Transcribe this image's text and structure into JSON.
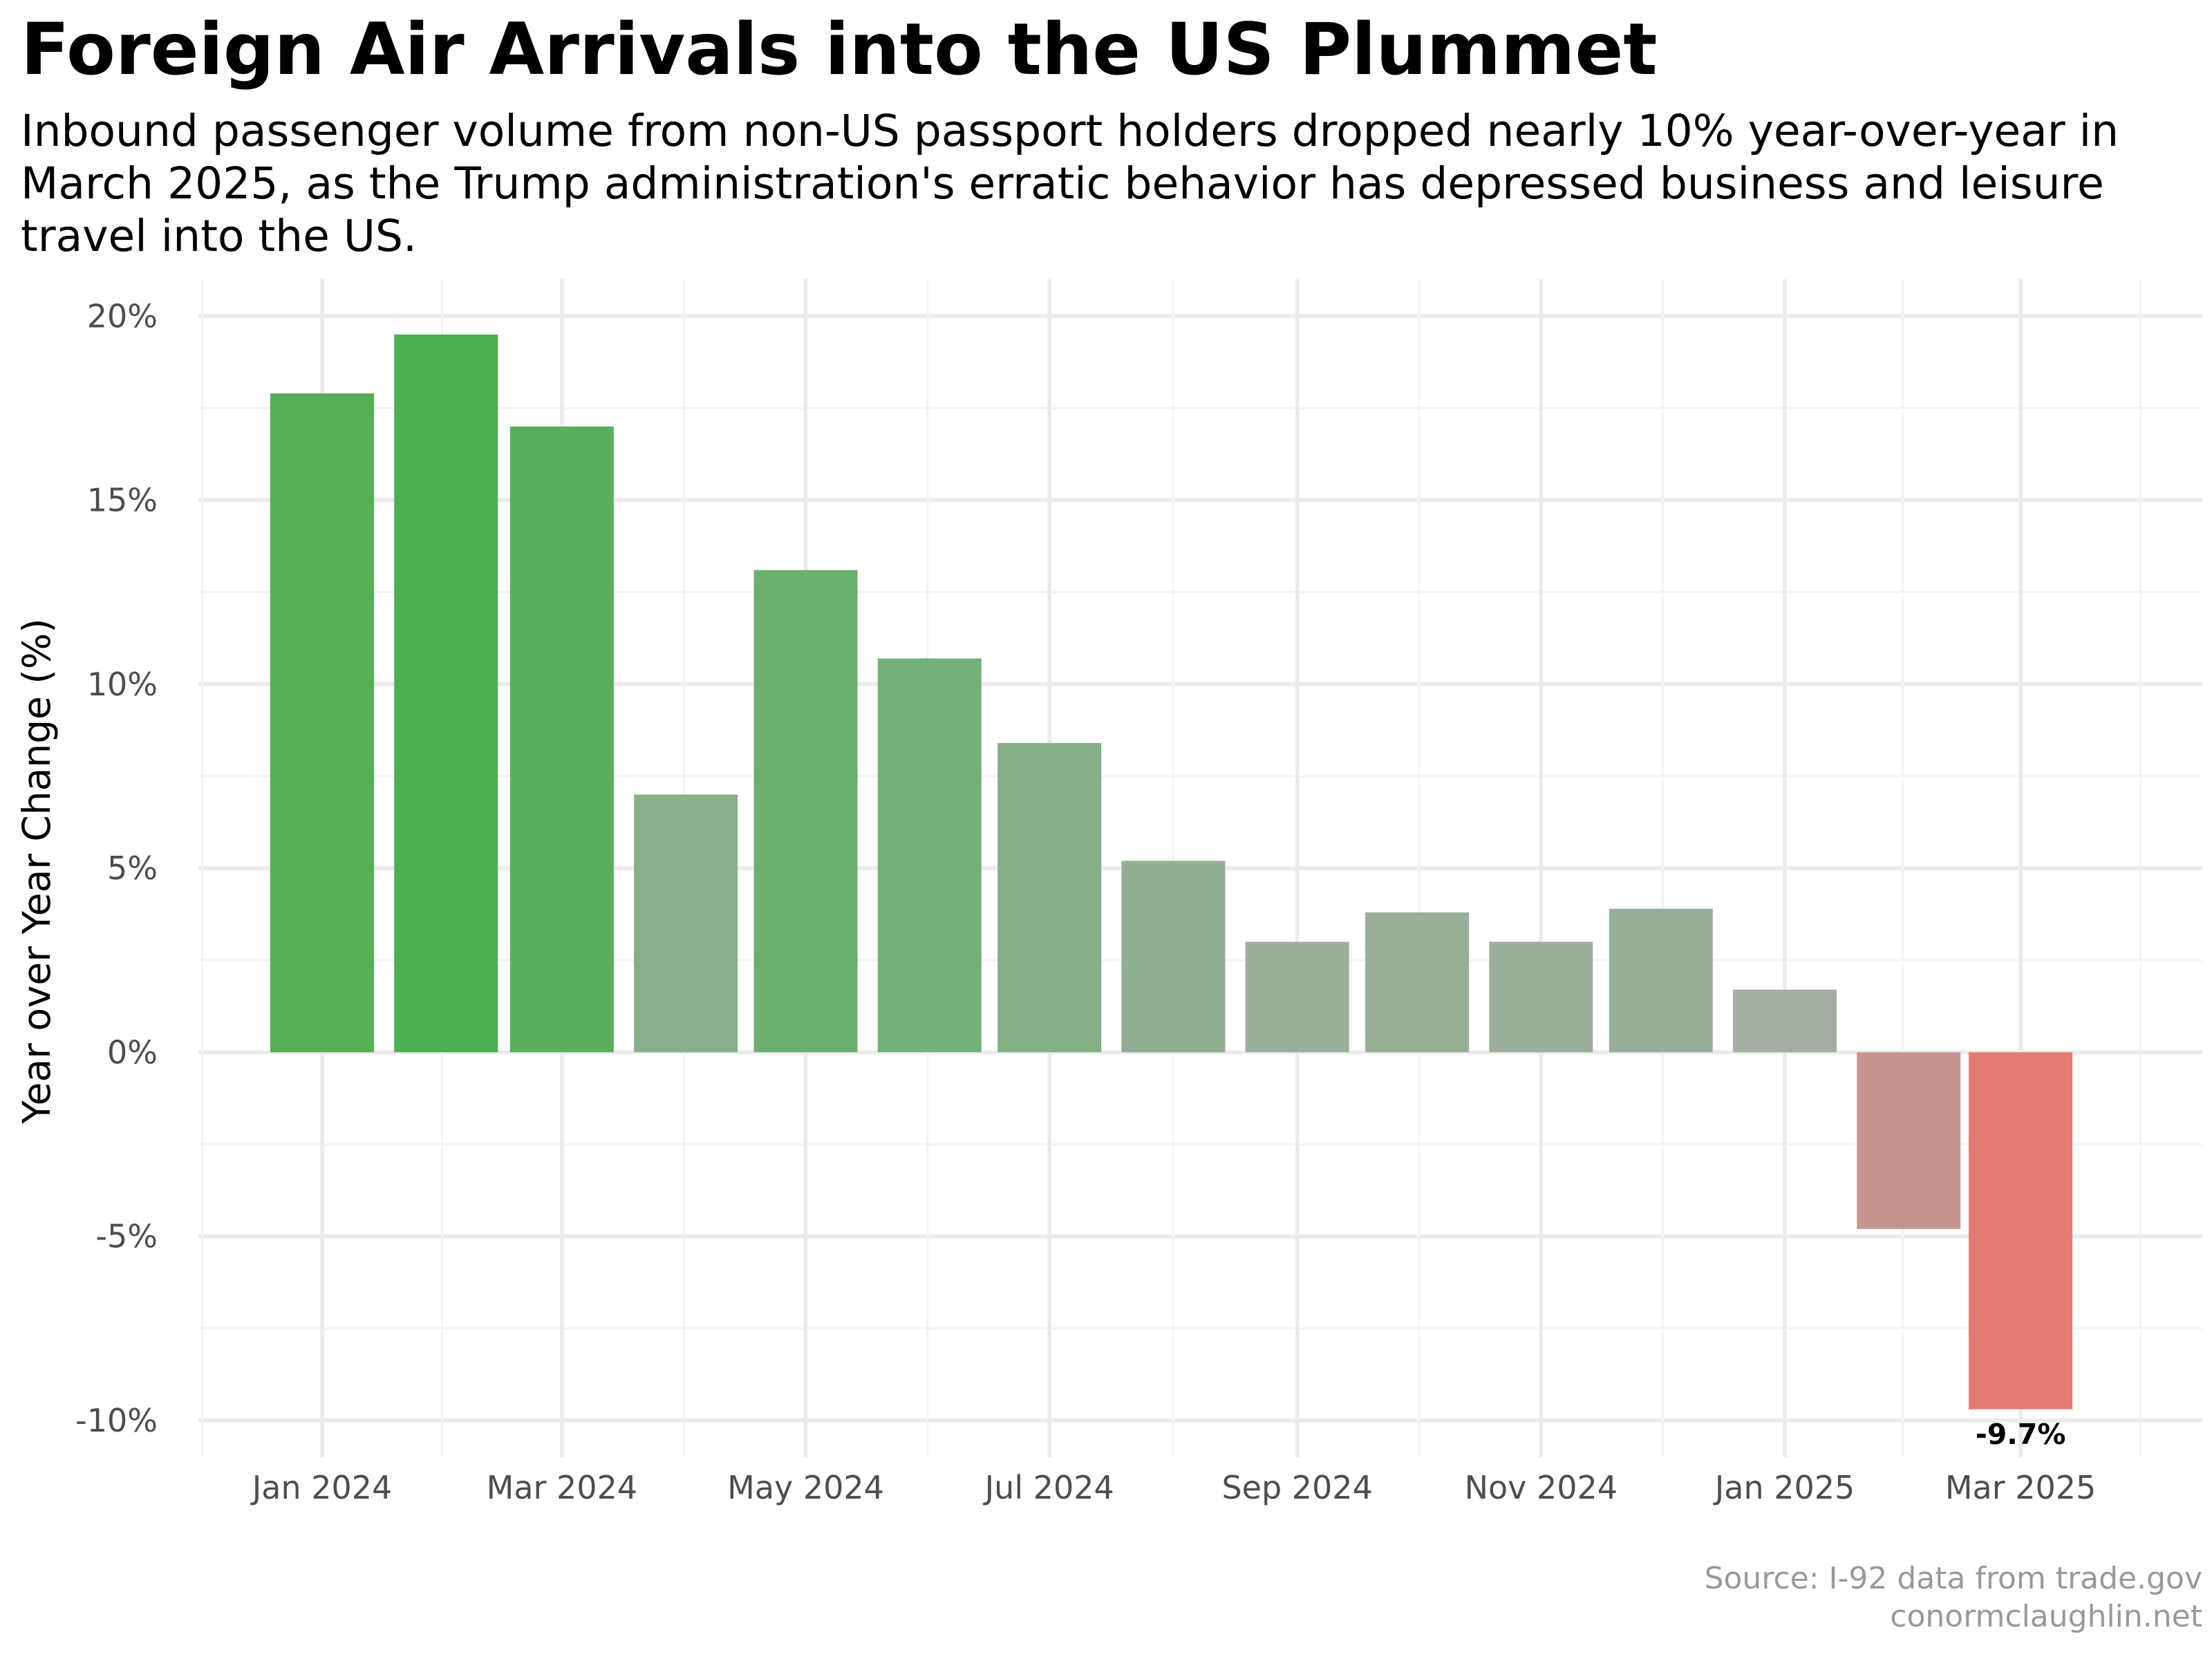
{
  "chart_data": {
    "type": "bar",
    "title": "Foreign Air Arrivals into the US Plummet",
    "subtitle": "Inbound passenger volume from non-US passport holders dropped nearly 10% year-over-year in March 2025, as the Trump administration's erratic behavior has depressed business and leisure travel into the US.",
    "xlabel": "",
    "ylabel": "Year over Year Change (%)",
    "ylim": [
      -11,
      21
    ],
    "y_ticks": [
      -10,
      -5,
      0,
      5,
      10,
      15,
      20
    ],
    "y_tick_labels": [
      "-10%",
      "-5%",
      "0%",
      "5%",
      "10%",
      "15%",
      "20%"
    ],
    "x_tick_labels": [
      "Jan 2024",
      "Mar 2024",
      "May 2024",
      "Jul 2024",
      "Sep 2024",
      "Nov 2024",
      "Jan 2025",
      "Mar 2025"
    ],
    "categories": [
      "2024-01",
      "2024-02",
      "2024-03",
      "2024-04",
      "2024-05",
      "2024-06",
      "2024-07",
      "2024-08",
      "2024-09",
      "2024-10",
      "2024-11",
      "2024-12",
      "2025-01",
      "2025-02",
      "2025-03"
    ],
    "values": [
      17.9,
      19.5,
      17.0,
      7.0,
      13.1,
      10.7,
      8.4,
      5.2,
      3.0,
      3.8,
      3.0,
      3.9,
      1.7,
      -4.8,
      -9.7
    ],
    "data_labels": [
      {
        "category": "2025-03",
        "text": "-9.7%"
      }
    ],
    "grid": true,
    "legend": "none",
    "color_scale": {
      "high": "#4CAF50",
      "mid": "#AAAFAA",
      "low": "#E57A73"
    },
    "caption": [
      "Source: I-92 data from trade.gov",
      "conormclaughlin.net"
    ]
  }
}
